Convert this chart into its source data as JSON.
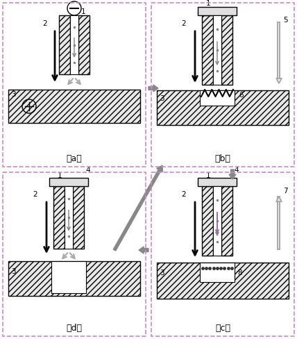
{
  "fig_width": 4.28,
  "fig_height": 4.88,
  "bg_color": "#ffffff",
  "border_color": "#cc88cc",
  "hatch_pattern": "////",
  "hatch_fc": "#e8e8e8",
  "panels": [
    "a",
    "b",
    "c",
    "d"
  ],
  "gray_arrow": "#888888",
  "light_gray": "#aaaaaa",
  "purple_arrow": "#9966aa",
  "black": "#000000",
  "label_fs": 7.5,
  "caption_fs": 9
}
